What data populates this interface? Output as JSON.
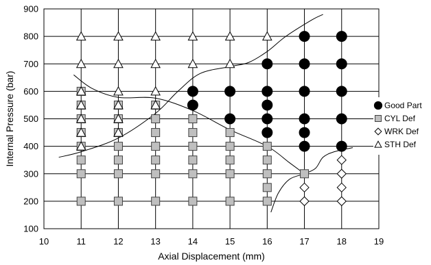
{
  "chart_data": {
    "type": "scatter",
    "title": "",
    "xlabel": "Axial Displacement (mm)",
    "ylabel": "Internal Pressure (bar)",
    "xlim": [
      10,
      19
    ],
    "ylim": [
      100,
      900
    ],
    "xticks": [
      10,
      11,
      12,
      13,
      14,
      15,
      16,
      17,
      18,
      19
    ],
    "yticks": [
      100,
      200,
      300,
      400,
      500,
      600,
      700,
      800,
      900
    ],
    "grid": true,
    "legend_position": "right",
    "series": [
      {
        "name": "Good Part",
        "marker": "filled-circle",
        "color": "#000000",
        "points": [
          [
            14,
            600
          ],
          [
            14,
            550
          ],
          [
            15,
            600
          ],
          [
            15,
            500
          ],
          [
            16,
            700
          ],
          [
            16,
            600
          ],
          [
            16,
            550
          ],
          [
            16,
            500
          ],
          [
            16,
            450
          ],
          [
            17,
            800
          ],
          [
            17,
            700
          ],
          [
            17,
            600
          ],
          [
            17,
            500
          ],
          [
            17,
            450
          ],
          [
            17,
            400
          ],
          [
            18,
            800
          ],
          [
            18,
            700
          ],
          [
            18,
            600
          ],
          [
            18,
            500
          ],
          [
            18,
            400
          ]
        ]
      },
      {
        "name": "CYL Def",
        "marker": "gray-square",
        "color": "#bfbfbf",
        "points": [
          [
            11,
            600
          ],
          [
            11,
            550
          ],
          [
            11,
            500
          ],
          [
            11,
            450
          ],
          [
            11,
            400
          ],
          [
            11,
            350
          ],
          [
            11,
            300
          ],
          [
            11,
            200
          ],
          [
            12,
            550
          ],
          [
            12,
            500
          ],
          [
            12,
            450
          ],
          [
            12,
            400
          ],
          [
            12,
            350
          ],
          [
            12,
            300
          ],
          [
            12,
            200
          ],
          [
            13,
            550
          ],
          [
            13,
            500
          ],
          [
            13,
            450
          ],
          [
            13,
            400
          ],
          [
            13,
            350
          ],
          [
            13,
            300
          ],
          [
            13,
            200
          ],
          [
            14,
            500
          ],
          [
            14,
            450
          ],
          [
            14,
            400
          ],
          [
            14,
            350
          ],
          [
            14,
            300
          ],
          [
            14,
            200
          ],
          [
            15,
            450
          ],
          [
            15,
            400
          ],
          [
            15,
            350
          ],
          [
            15,
            300
          ],
          [
            15,
            200
          ],
          [
            16,
            400
          ],
          [
            16,
            350
          ],
          [
            16,
            300
          ],
          [
            16,
            250
          ],
          [
            16,
            200
          ],
          [
            17,
            300
          ]
        ]
      },
      {
        "name": "WRK Def",
        "marker": "open-diamond",
        "color": "#ffffff",
        "points": [
          [
            17,
            250
          ],
          [
            17,
            200
          ],
          [
            18,
            350
          ],
          [
            18,
            300
          ],
          [
            18,
            250
          ],
          [
            18,
            200
          ]
        ]
      },
      {
        "name": "STH Def",
        "marker": "open-triangle",
        "color": "#ffffff",
        "points": [
          [
            11,
            800
          ],
          [
            11,
            700
          ],
          [
            11,
            600
          ],
          [
            11,
            550
          ],
          [
            11,
            500
          ],
          [
            11,
            450
          ],
          [
            11,
            400
          ],
          [
            12,
            800
          ],
          [
            12,
            700
          ],
          [
            12,
            600
          ],
          [
            12,
            550
          ],
          [
            12,
            500
          ],
          [
            12,
            450
          ],
          [
            13,
            800
          ],
          [
            13,
            700
          ],
          [
            13,
            600
          ],
          [
            13,
            550
          ],
          [
            14,
            800
          ],
          [
            14,
            700
          ],
          [
            15,
            800
          ],
          [
            15,
            700
          ],
          [
            16,
            800
          ]
        ]
      }
    ],
    "boundary_curves": [
      {
        "points": [
          [
            10.4,
            360
          ],
          [
            11,
            380
          ],
          [
            12,
            430
          ],
          [
            13,
            520
          ],
          [
            13.6,
            600
          ],
          [
            14.2,
            665
          ],
          [
            15,
            690
          ],
          [
            15.5,
            705
          ],
          [
            16,
            745
          ],
          [
            16.5,
            800
          ],
          [
            17.2,
            860
          ],
          [
            17.5,
            880
          ]
        ]
      },
      {
        "points": [
          [
            10.8,
            660
          ],
          [
            11.3,
            610
          ],
          [
            12,
            578
          ],
          [
            13,
            575
          ],
          [
            14,
            530
          ],
          [
            15,
            460
          ],
          [
            16,
            400
          ],
          [
            16.6,
            340
          ],
          [
            17,
            300
          ]
        ]
      },
      {
        "points": [
          [
            16.1,
            160
          ],
          [
            16.3,
            230
          ],
          [
            16.6,
            280
          ],
          [
            17,
            300
          ],
          [
            17.3,
            320
          ],
          [
            17.5,
            360
          ],
          [
            17.8,
            380
          ],
          [
            18.3,
            395
          ]
        ]
      }
    ]
  }
}
